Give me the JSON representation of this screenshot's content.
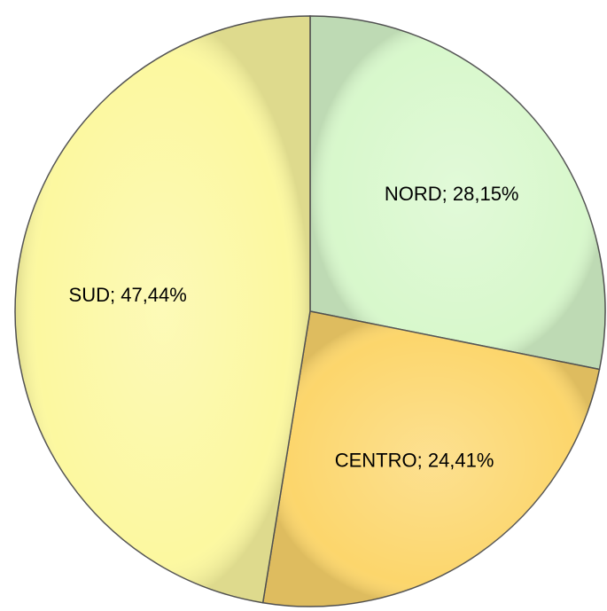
{
  "chart_data": {
    "type": "pie",
    "values": [
      28.15,
      24.41,
      47.44
    ],
    "value_labels": [
      "NORD; 28,15%",
      "CENTRO; 24,41%",
      "SUD; 47,44%"
    ],
    "colors": [
      "#d8f8cc",
      "#fcd66c",
      "#fcf8a0"
    ]
  }
}
